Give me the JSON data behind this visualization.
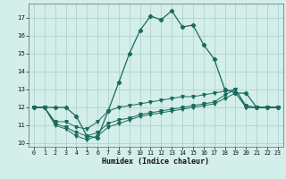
{
  "xlabel": "Humidex (Indice chaleur)",
  "background_color": "#d4eeea",
  "grid_color": "#aacccc",
  "line_color": "#1a6b5a",
  "xlim": [
    -0.5,
    23.5
  ],
  "ylim": [
    9.8,
    17.8
  ],
  "xticks": [
    0,
    1,
    2,
    3,
    4,
    5,
    6,
    7,
    8,
    9,
    10,
    11,
    12,
    13,
    14,
    15,
    16,
    17,
    18,
    19,
    20,
    21,
    22,
    23
  ],
  "yticks": [
    10,
    11,
    12,
    13,
    14,
    15,
    16,
    17
  ],
  "line1_x": [
    0,
    1,
    2,
    3,
    4,
    5,
    6,
    7,
    8,
    9,
    10,
    11,
    12,
    13,
    14,
    15,
    16,
    17,
    18,
    19,
    20,
    21,
    22,
    23
  ],
  "line1_y": [
    12.0,
    12.0,
    12.0,
    12.0,
    11.5,
    10.4,
    10.3,
    11.8,
    13.4,
    15.0,
    16.3,
    17.1,
    16.9,
    17.4,
    16.5,
    16.6,
    15.5,
    14.7,
    13.0,
    12.8,
    12.8,
    12.0,
    12.0,
    12.0
  ],
  "line2_x": [
    0,
    1,
    2,
    3,
    4,
    5,
    6,
    7,
    8,
    9,
    10,
    11,
    12,
    13,
    14,
    15,
    16,
    17,
    18,
    19,
    20,
    21,
    22,
    23
  ],
  "line2_y": [
    12.0,
    12.0,
    11.2,
    11.2,
    10.9,
    10.8,
    11.2,
    11.8,
    12.0,
    12.1,
    12.2,
    12.3,
    12.4,
    12.5,
    12.6,
    12.6,
    12.7,
    12.8,
    12.9,
    13.0,
    12.1,
    12.0,
    12.0,
    12.0
  ],
  "line3_x": [
    0,
    1,
    2,
    3,
    4,
    5,
    6,
    7,
    8,
    9,
    10,
    11,
    12,
    13,
    14,
    15,
    16,
    17,
    18,
    19,
    20,
    21,
    22,
    23
  ],
  "line3_y": [
    12.0,
    12.0,
    11.0,
    10.8,
    10.4,
    10.2,
    10.4,
    10.9,
    11.1,
    11.3,
    11.5,
    11.6,
    11.7,
    11.8,
    11.9,
    12.0,
    12.1,
    12.2,
    12.5,
    12.8,
    12.0,
    12.0,
    12.0,
    12.0
  ],
  "line4_x": [
    0,
    1,
    2,
    3,
    4,
    5,
    6,
    7,
    8,
    9,
    10,
    11,
    12,
    13,
    14,
    15,
    16,
    17,
    18,
    19,
    20,
    21,
    22,
    23
  ],
  "line4_y": [
    12.0,
    12.0,
    11.1,
    10.9,
    10.6,
    10.4,
    10.6,
    11.1,
    11.3,
    11.4,
    11.6,
    11.7,
    11.8,
    11.9,
    12.0,
    12.1,
    12.2,
    12.3,
    12.7,
    13.0,
    12.0,
    12.0,
    12.0,
    12.0
  ]
}
